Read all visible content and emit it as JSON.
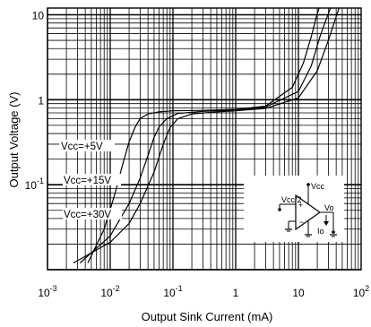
{
  "chart_data": {
    "type": "line",
    "title": "",
    "xlabel": "Output Sink Current   (mA)",
    "ylabel": "Output Voltage  (V)",
    "xscale": "log",
    "yscale": "log",
    "xlim": [
      0.001,
      100
    ],
    "ylim": [
      0.01,
      12
    ],
    "grid": true,
    "x_tick_labels": [
      {
        "value": 0.001,
        "base": "10",
        "exp": "-3"
      },
      {
        "value": 0.01,
        "base": "10",
        "exp": "-2"
      },
      {
        "value": 0.1,
        "base": "10",
        "exp": "-1"
      },
      {
        "value": 1,
        "base": "1",
        "exp": ""
      },
      {
        "value": 10,
        "base": "10",
        "exp": ""
      },
      {
        "value": 100,
        "base": "10",
        "exp": "2"
      }
    ],
    "y_tick_labels": [
      {
        "value": 10,
        "base": "10",
        "exp": ""
      },
      {
        "value": 1,
        "base": "1",
        "exp": ""
      },
      {
        "value": 0.1,
        "base": "10",
        "exp": "-1"
      }
    ],
    "series": [
      {
        "name": "Vcc=+5V",
        "x": [
          0.0044,
          0.008,
          0.012,
          0.016,
          0.02,
          0.025,
          0.03,
          0.04,
          0.06,
          0.1,
          0.3,
          1,
          3,
          8,
          12,
          16,
          19,
          22
        ],
        "y": [
          0.012,
          0.03,
          0.08,
          0.18,
          0.32,
          0.48,
          0.6,
          0.68,
          0.72,
          0.74,
          0.75,
          0.77,
          0.84,
          1.4,
          2.7,
          5.5,
          9,
          13
        ]
      },
      {
        "name": "Vcc=+15V",
        "x": [
          0.0033,
          0.01,
          0.02,
          0.03,
          0.04,
          0.05,
          0.06,
          0.08,
          0.12,
          0.3,
          1,
          3,
          10,
          16,
          22,
          28,
          34
        ],
        "y": [
          0.012,
          0.025,
          0.06,
          0.12,
          0.22,
          0.36,
          0.48,
          0.6,
          0.69,
          0.73,
          0.76,
          0.82,
          1.25,
          2.5,
          5.5,
          9,
          13
        ]
      },
      {
        "name": "Vcc=+30V",
        "x": [
          0.0026,
          0.01,
          0.02,
          0.03,
          0.05,
          0.07,
          0.09,
          0.12,
          0.2,
          0.5,
          1,
          3,
          10,
          20,
          30,
          38,
          46
        ],
        "y": [
          0.012,
          0.021,
          0.035,
          0.06,
          0.14,
          0.3,
          0.47,
          0.6,
          0.68,
          0.72,
          0.74,
          0.79,
          1.05,
          2.2,
          5,
          8.5,
          13
        ]
      }
    ],
    "legend": [
      {
        "label": "Vcc=+5V"
      },
      {
        "label": "Vcc=+15V"
      },
      {
        "label": "Vcc=+30V"
      }
    ],
    "inset": {
      "labels": {
        "vcc": "Vcc",
        "vcc_half": "Vcc/2",
        "vo": "Vo",
        "io": "Io"
      }
    }
  }
}
